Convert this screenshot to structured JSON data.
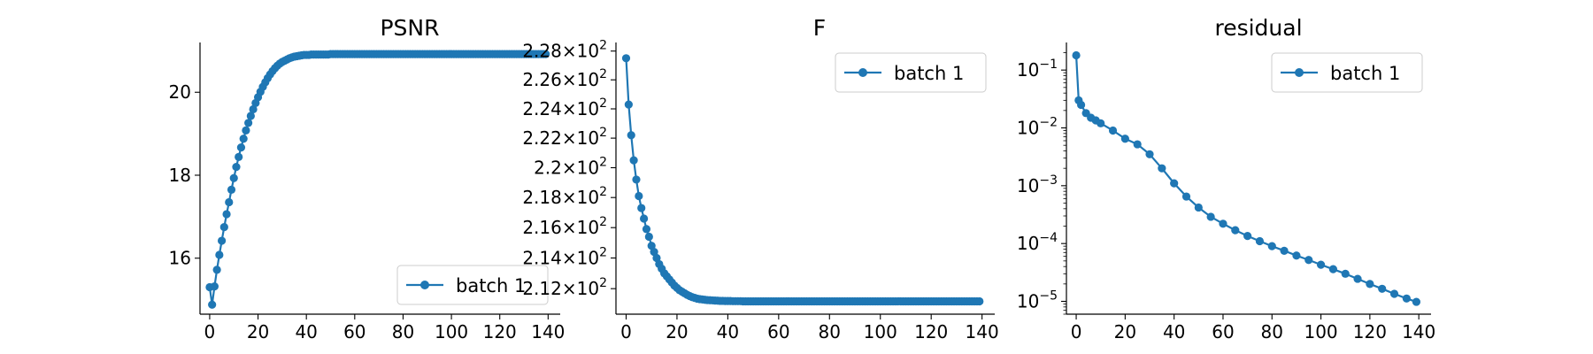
{
  "colors": {
    "series": "#1f77b4"
  },
  "chart_data": [
    {
      "type": "line",
      "title": "PSNR",
      "xlabel": "",
      "ylabel": "",
      "yscale": "linear",
      "xlim": [
        -4,
        145
      ],
      "ylim": [
        14.65,
        21.2
      ],
      "xticks": [
        0,
        20,
        40,
        60,
        80,
        100,
        120,
        140
      ],
      "yticks": [
        16,
        18,
        20
      ],
      "legend_position": "lower-right",
      "series": [
        {
          "name": "batch 1",
          "x": [
            0,
            1,
            2,
            3,
            4,
            5,
            6,
            7,
            8,
            9,
            10,
            11,
            12,
            13,
            14,
            15,
            16,
            17,
            18,
            19,
            20,
            21,
            22,
            23,
            24,
            25,
            26,
            27,
            28,
            29,
            30,
            31,
            32,
            33,
            34,
            35,
            36,
            37,
            38,
            39,
            40,
            41,
            42,
            43,
            44,
            45,
            46,
            47,
            48,
            49,
            50,
            51,
            52,
            53,
            54,
            55,
            56,
            57,
            58,
            59,
            60,
            61,
            62,
            63,
            64,
            65,
            66,
            67,
            68,
            69,
            70,
            71,
            72,
            73,
            74,
            75,
            76,
            77,
            78,
            79,
            80,
            81,
            82,
            83,
            84,
            85,
            86,
            87,
            88,
            89,
            90,
            91,
            92,
            93,
            94,
            95,
            96,
            97,
            98,
            99,
            100,
            101,
            102,
            103,
            104,
            105,
            106,
            107,
            108,
            109,
            110,
            111,
            112,
            113,
            114,
            115,
            116,
            117,
            118,
            119,
            120,
            121,
            122,
            123,
            124,
            125,
            126,
            127,
            128,
            129,
            130,
            131,
            132,
            133,
            134,
            135,
            136,
            137,
            138,
            139
          ],
          "y": [
            15.3,
            14.88,
            15.32,
            15.72,
            16.08,
            16.42,
            16.75,
            17.06,
            17.35,
            17.65,
            17.93,
            18.2,
            18.44,
            18.67,
            18.88,
            19.08,
            19.26,
            19.43,
            19.59,
            19.74,
            19.88,
            20.01,
            20.13,
            20.24,
            20.34,
            20.43,
            20.51,
            20.58,
            20.64,
            20.69,
            20.73,
            20.76,
            20.79,
            20.82,
            20.84,
            20.86,
            20.87,
            20.88,
            20.89,
            20.9,
            20.9,
            20.9,
            20.91,
            20.91,
            20.91,
            20.91,
            20.91,
            20.91,
            20.91,
            20.91,
            20.92,
            20.92,
            20.92,
            20.92,
            20.92,
            20.92,
            20.92,
            20.92,
            20.92,
            20.92,
            20.92,
            20.92,
            20.92,
            20.92,
            20.92,
            20.92,
            20.92,
            20.92,
            20.92,
            20.92,
            20.92,
            20.92,
            20.92,
            20.92,
            20.92,
            20.92,
            20.92,
            20.92,
            20.92,
            20.92,
            20.92,
            20.92,
            20.92,
            20.92,
            20.92,
            20.92,
            20.92,
            20.92,
            20.92,
            20.92,
            20.92,
            20.92,
            20.92,
            20.92,
            20.92,
            20.92,
            20.92,
            20.92,
            20.92,
            20.92,
            20.92,
            20.92,
            20.92,
            20.92,
            20.92,
            20.92,
            20.92,
            20.92,
            20.92,
            20.92,
            20.92,
            20.92,
            20.92,
            20.92,
            20.92,
            20.92,
            20.92,
            20.92,
            20.92,
            20.92,
            20.92,
            20.92,
            20.92,
            20.92,
            20.92,
            20.92,
            20.92,
            20.92,
            20.92,
            20.92,
            20.92,
            20.92,
            20.92,
            20.92,
            20.92,
            20.92,
            20.92,
            20.92,
            20.92,
            20.92
          ]
        }
      ]
    },
    {
      "type": "line",
      "title": "F",
      "xlabel": "",
      "ylabel": "",
      "yscale": "log",
      "xlim": [
        -4,
        145
      ],
      "ylim": [
        210.35,
        228.6
      ],
      "xticks": [
        0,
        20,
        40,
        60,
        80,
        100,
        120,
        140
      ],
      "yticks": [
        212,
        214,
        216,
        218,
        220,
        222,
        224,
        226,
        228
      ],
      "ytick_labels": [
        {
          "mantissa": "2.12",
          "base": "10",
          "exp": "2"
        },
        {
          "mantissa": "2.14",
          "base": "10",
          "exp": "2"
        },
        {
          "mantissa": "2.16",
          "base": "10",
          "exp": "2"
        },
        {
          "mantissa": "2.18",
          "base": "10",
          "exp": "2"
        },
        {
          "mantissa": "2.2",
          "base": "10",
          "exp": "2"
        },
        {
          "mantissa": "2.22",
          "base": "10",
          "exp": "2"
        },
        {
          "mantissa": "2.24",
          "base": "10",
          "exp": "2"
        },
        {
          "mantissa": "2.26",
          "base": "10",
          "exp": "2"
        },
        {
          "mantissa": "2.28",
          "base": "10",
          "exp": "2"
        }
      ],
      "times_symbol": "×",
      "legend_position": "upper-right",
      "series": [
        {
          "name": "batch 1",
          "x": [
            0,
            1,
            2,
            3,
            4,
            5,
            6,
            7,
            8,
            9,
            10,
            11,
            12,
            13,
            14,
            15,
            16,
            17,
            18,
            19,
            20,
            21,
            22,
            23,
            24,
            25,
            26,
            27,
            28,
            29,
            30,
            31,
            32,
            33,
            34,
            35,
            36,
            37,
            38,
            39,
            40,
            41,
            42,
            43,
            44,
            45,
            46,
            47,
            48,
            49,
            50,
            51,
            52,
            53,
            54,
            55,
            56,
            57,
            58,
            59,
            60,
            61,
            62,
            63,
            64,
            65,
            66,
            67,
            68,
            69,
            70,
            71,
            72,
            73,
            74,
            75,
            76,
            77,
            78,
            79,
            80,
            81,
            82,
            83,
            84,
            85,
            86,
            87,
            88,
            89,
            90,
            91,
            92,
            93,
            94,
            95,
            96,
            97,
            98,
            99,
            100,
            101,
            102,
            103,
            104,
            105,
            106,
            107,
            108,
            109,
            110,
            111,
            112,
            113,
            114,
            115,
            116,
            117,
            118,
            119,
            120,
            121,
            122,
            123,
            124,
            125,
            126,
            127,
            128,
            129,
            130,
            131,
            132,
            133,
            134,
            135,
            136,
            137,
            138,
            139
          ],
          "y": [
            227.5,
            224.3,
            222.2,
            220.5,
            219.2,
            218.1,
            217.3,
            216.6,
            215.9,
            215.4,
            214.8,
            214.4,
            214.0,
            213.6,
            213.3,
            213.0,
            212.8,
            212.6,
            212.4,
            212.2,
            212.05,
            211.9,
            211.8,
            211.7,
            211.6,
            211.52,
            211.45,
            211.4,
            211.35,
            211.32,
            211.3,
            211.28,
            211.26,
            211.25,
            211.24,
            211.23,
            211.22,
            211.21,
            211.21,
            211.2,
            211.2,
            211.2,
            211.19,
            211.19,
            211.19,
            211.19,
            211.18,
            211.18,
            211.18,
            211.18,
            211.18,
            211.18,
            211.18,
            211.18,
            211.18,
            211.18,
            211.18,
            211.18,
            211.18,
            211.18,
            211.18,
            211.18,
            211.18,
            211.18,
            211.18,
            211.18,
            211.18,
            211.18,
            211.18,
            211.18,
            211.18,
            211.18,
            211.18,
            211.18,
            211.18,
            211.18,
            211.18,
            211.18,
            211.18,
            211.18,
            211.18,
            211.18,
            211.18,
            211.18,
            211.18,
            211.18,
            211.18,
            211.18,
            211.18,
            211.18,
            211.18,
            211.18,
            211.18,
            211.18,
            211.18,
            211.18,
            211.18,
            211.18,
            211.18,
            211.18,
            211.18,
            211.18,
            211.18,
            211.18,
            211.18,
            211.18,
            211.18,
            211.18,
            211.18,
            211.18,
            211.18,
            211.18,
            211.18,
            211.18,
            211.18,
            211.18,
            211.18,
            211.18,
            211.18,
            211.18,
            211.18,
            211.18,
            211.18,
            211.18,
            211.18,
            211.18,
            211.18,
            211.18,
            211.18,
            211.18,
            211.18,
            211.18,
            211.18,
            211.18,
            211.18,
            211.18,
            211.18,
            211.18,
            211.18,
            211.18
          ]
        }
      ]
    },
    {
      "type": "line",
      "title": "residual",
      "xlabel": "",
      "ylabel": "",
      "yscale": "log",
      "xlim": [
        -4,
        145
      ],
      "ylim": [
        6e-06,
        0.3
      ],
      "xticks": [
        0,
        20,
        40,
        60,
        80,
        100,
        120,
        140
      ],
      "yticks": [
        1e-05,
        0.0001,
        0.001,
        0.01,
        0.1
      ],
      "ytick_labels": [
        {
          "base": "10",
          "exp": "−5"
        },
        {
          "base": "10",
          "exp": "−4"
        },
        {
          "base": "10",
          "exp": "−3"
        },
        {
          "base": "10",
          "exp": "−2"
        },
        {
          "base": "10",
          "exp": "−1"
        }
      ],
      "legend_position": "upper-right",
      "series": [
        {
          "name": "batch 1",
          "x": [
            0,
            1,
            2,
            4,
            6,
            8,
            10,
            15,
            20,
            25,
            30,
            35,
            40,
            45,
            50,
            55,
            60,
            65,
            70,
            75,
            80,
            85,
            90,
            95,
            100,
            105,
            110,
            115,
            120,
            125,
            130,
            135,
            139
          ],
          "y": [
            0.18,
            0.03,
            0.025,
            0.018,
            0.015,
            0.0135,
            0.012,
            0.009,
            0.0065,
            0.0052,
            0.0035,
            0.002,
            0.0011,
            0.00065,
            0.00042,
            0.00029,
            0.00022,
            0.00017,
            0.000135,
            0.00011,
            9e-05,
            7.5e-05,
            6.2e-05,
            5.2e-05,
            4.3e-05,
            3.6e-05,
            3e-05,
            2.45e-05,
            2e-05,
            1.65e-05,
            1.35e-05,
            1.12e-05,
            9.8e-06
          ]
        }
      ]
    }
  ]
}
